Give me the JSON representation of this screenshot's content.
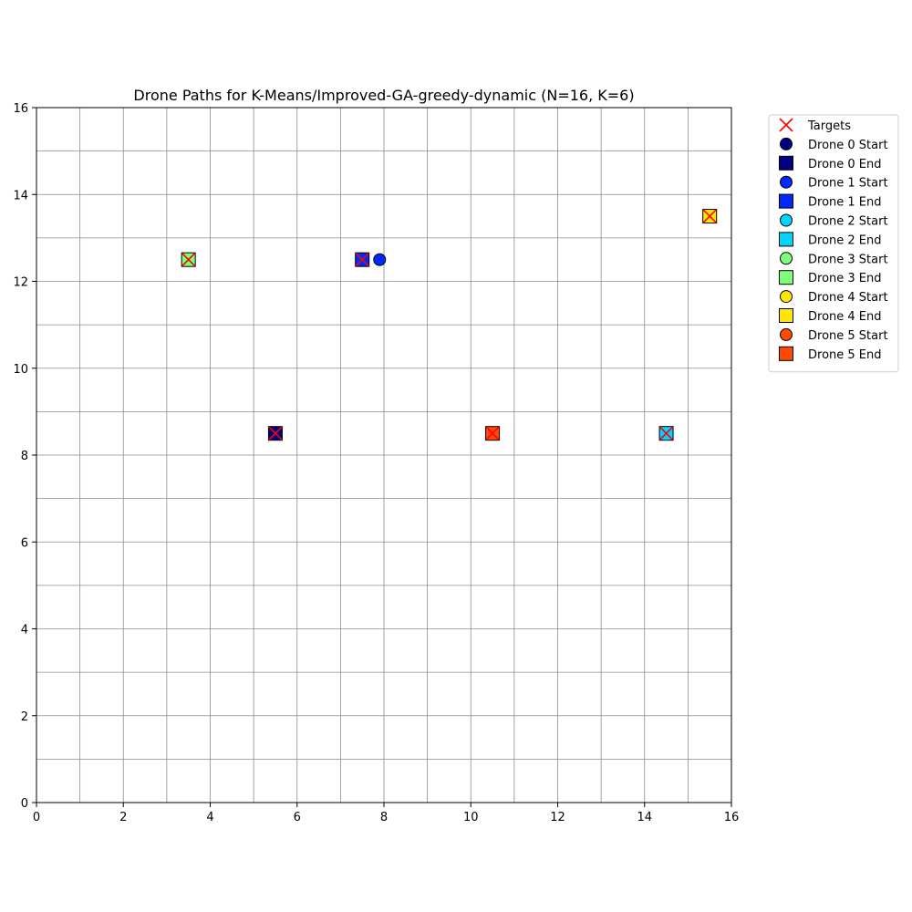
{
  "chart_data": {
    "type": "scatter",
    "title": "Drone Paths for K-Means/Improved-GA-greedy-dynamic (N=16, K=6)",
    "xlim": [
      0,
      16
    ],
    "ylim": [
      0,
      16
    ],
    "x_ticks": [
      0,
      2,
      4,
      6,
      8,
      10,
      12,
      14,
      16
    ],
    "y_ticks": [
      0,
      2,
      4,
      6,
      8,
      10,
      12,
      14,
      16
    ],
    "grid": true,
    "grid_step": 1,
    "legend_placement": "outside-top-right",
    "targets": {
      "label": "Targets",
      "color": "#ff0000",
      "points": [
        [
          3.5,
          12.5
        ],
        [
          7.5,
          12.5
        ],
        [
          5.5,
          8.5
        ],
        [
          10.5,
          8.5
        ],
        [
          14.5,
          8.5
        ],
        [
          15.5,
          13.5
        ]
      ]
    },
    "drones": [
      {
        "start_label": "Drone 0 Start",
        "end_label": "Drone 0 End",
        "color": "#000080",
        "start": null,
        "end": [
          5.5,
          8.5
        ]
      },
      {
        "start_label": "Drone 1 Start",
        "end_label": "Drone 1 End",
        "color": "#0028ff",
        "start": [
          7.9,
          12.5
        ],
        "end": [
          7.5,
          12.5
        ]
      },
      {
        "start_label": "Drone 2 Start",
        "end_label": "Drone 2 End",
        "color": "#00d4ff",
        "start": null,
        "end": [
          14.5,
          8.5
        ]
      },
      {
        "start_label": "Drone 3 Start",
        "end_label": "Drone 3 End",
        "color": "#7dff7a",
        "start": null,
        "end": [
          3.5,
          12.5
        ]
      },
      {
        "start_label": "Drone 4 Start",
        "end_label": "Drone 4 End",
        "color": "#ffe600",
        "start": null,
        "end": [
          15.5,
          13.5
        ]
      },
      {
        "start_label": "Drone 5 Start",
        "end_label": "Drone 5 End",
        "color": "#ff4a00",
        "start": null,
        "end": [
          10.5,
          8.5
        ]
      }
    ]
  }
}
